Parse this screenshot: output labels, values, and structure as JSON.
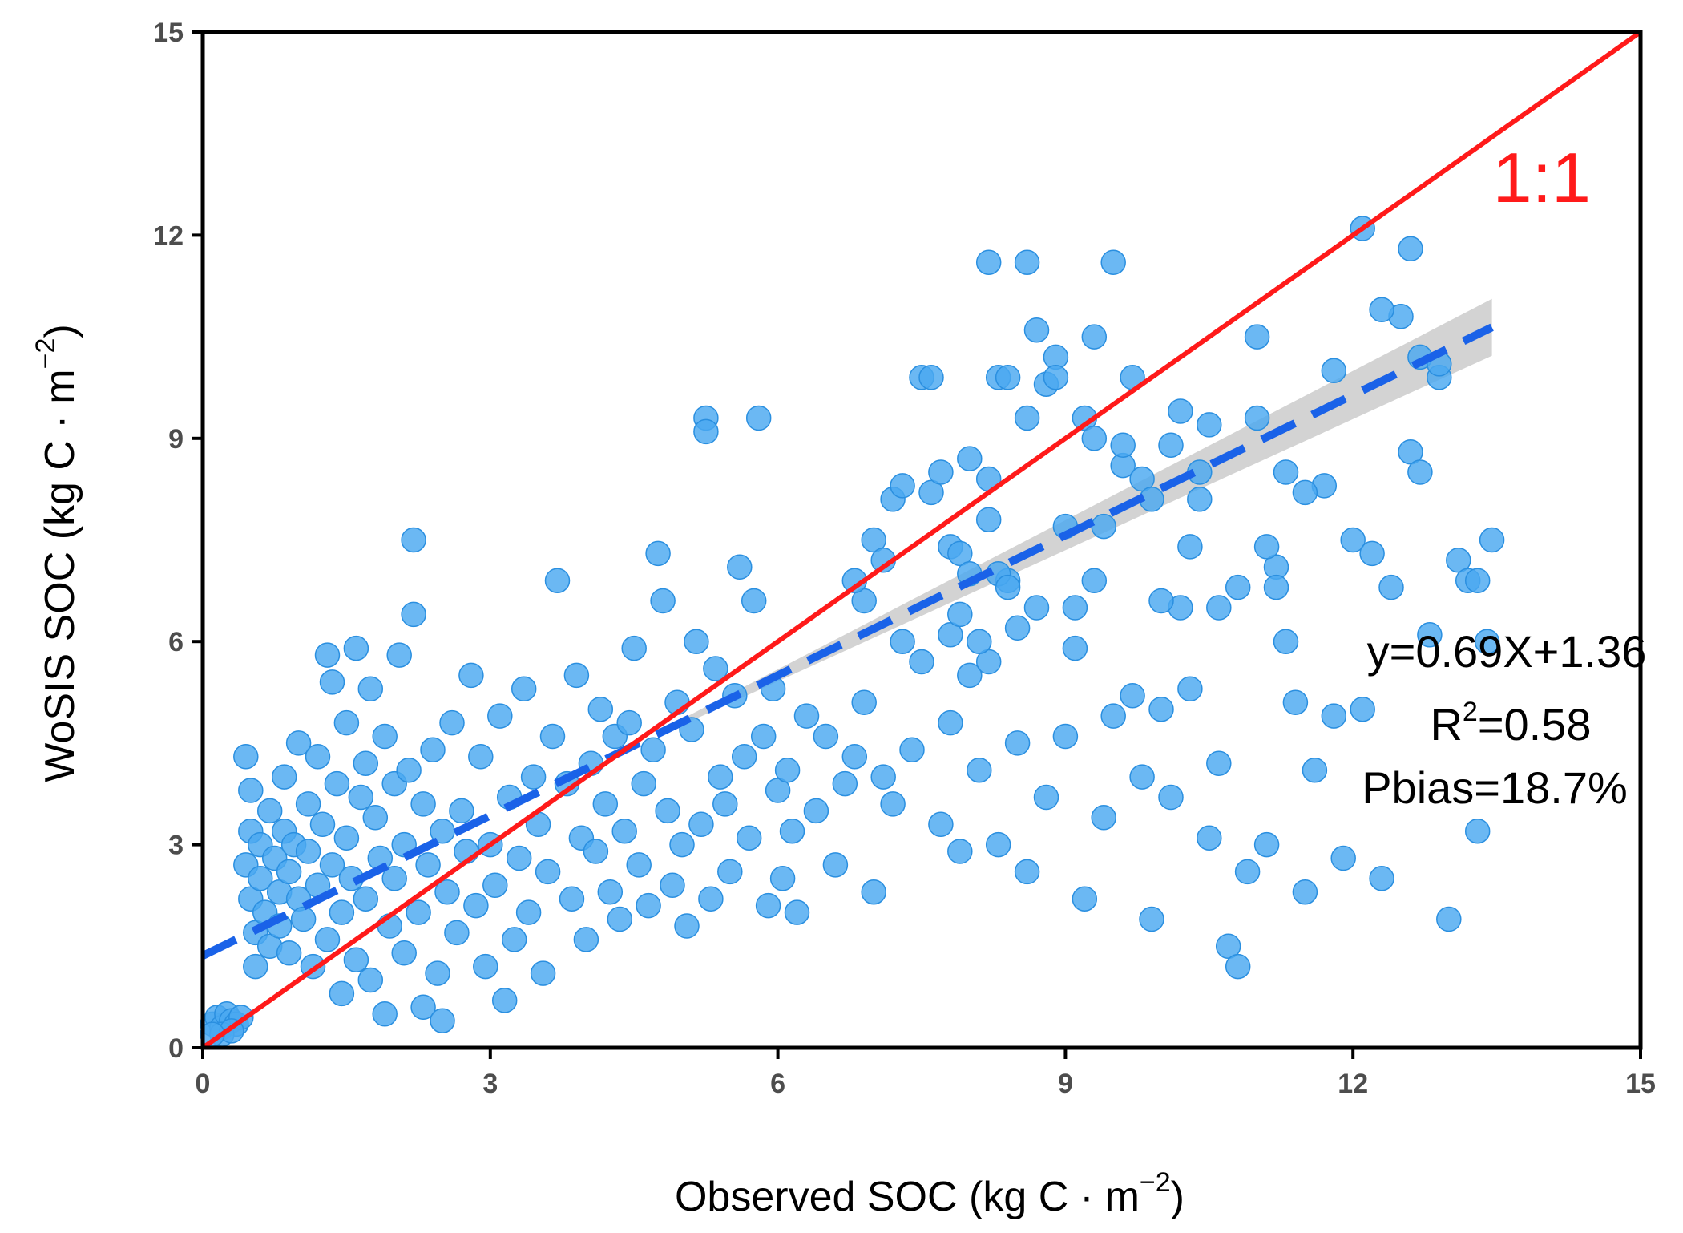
{
  "chart_data": {
    "type": "scatter",
    "title": "",
    "xlabel": {
      "prefix": "Observed SOC (kg C",
      "dot": "·",
      "unit": "m",
      "exp": "−2",
      "suffix": ")"
    },
    "ylabel": {
      "prefix": "WoSIS SOC (kg C",
      "dot": "·",
      "unit": "m",
      "exp": "−2",
      "suffix": ")"
    },
    "xlim": [
      0,
      15
    ],
    "ylim": [
      0,
      15
    ],
    "xticks": [
      "0",
      "3",
      "6",
      "9",
      "12",
      "15"
    ],
    "yticks": [
      "0",
      "3",
      "6",
      "9",
      "12",
      "15"
    ],
    "grid": false,
    "colors": {
      "points": "#4aa8f0",
      "point_edge": "#2a8fe0",
      "fit_line": "#1a62e8",
      "ci_band": "#d3d3d3",
      "one_to_one": "#ff1a1a",
      "frame": "#000000"
    },
    "one_to_one": {
      "label": "1:1",
      "x": [
        0,
        15
      ],
      "y": [
        0,
        15
      ]
    },
    "fit": {
      "slope": 0.69,
      "intercept": 1.36,
      "x_range": [
        0,
        13.45
      ],
      "ci_start_x": 4.9,
      "ci_halfwidth_start": 0.04,
      "ci_halfwidth_end": 0.42
    },
    "annotations": {
      "equation": "y=0.69X+1.36",
      "r2_prefix": "R",
      "r2_exp": "2",
      "r2_suffix": "=0.58",
      "pbias": "Pbias=18.7%"
    },
    "points": [
      [
        0.1,
        0.35
      ],
      [
        0.15,
        0.45
      ],
      [
        0.2,
        0.3
      ],
      [
        0.25,
        0.5
      ],
      [
        0.3,
        0.4
      ],
      [
        0.35,
        0.35
      ],
      [
        0.4,
        0.45
      ],
      [
        0.2,
        0.2
      ],
      [
        0.3,
        0.25
      ],
      [
        0.1,
        0.2
      ],
      [
        0.45,
        4.3
      ],
      [
        0.5,
        3.8
      ],
      [
        0.5,
        3.2
      ],
      [
        0.45,
        2.7
      ],
      [
        0.5,
        2.2
      ],
      [
        0.55,
        1.7
      ],
      [
        0.55,
        1.2
      ],
      [
        0.6,
        2.5
      ],
      [
        0.6,
        3.0
      ],
      [
        0.65,
        2.0
      ],
      [
        0.7,
        1.5
      ],
      [
        0.7,
        3.5
      ],
      [
        0.75,
        2.8
      ],
      [
        0.8,
        2.3
      ],
      [
        0.8,
        1.8
      ],
      [
        0.85,
        4.0
      ],
      [
        0.85,
        3.2
      ],
      [
        0.9,
        2.6
      ],
      [
        0.9,
        1.4
      ],
      [
        0.95,
        3.0
      ],
      [
        1.0,
        2.2
      ],
      [
        1.0,
        4.5
      ],
      [
        1.05,
        1.9
      ],
      [
        1.1,
        3.6
      ],
      [
        1.1,
        2.9
      ],
      [
        1.15,
        1.2
      ],
      [
        1.2,
        4.3
      ],
      [
        1.2,
        2.4
      ],
      [
        1.25,
        3.3
      ],
      [
        1.3,
        1.6
      ],
      [
        1.3,
        5.8
      ],
      [
        1.35,
        5.4
      ],
      [
        1.35,
        2.7
      ],
      [
        1.4,
        3.9
      ],
      [
        1.45,
        2.0
      ],
      [
        1.45,
        0.8
      ],
      [
        1.5,
        4.8
      ],
      [
        1.5,
        3.1
      ],
      [
        1.55,
        2.5
      ],
      [
        1.6,
        5.9
      ],
      [
        1.6,
        1.3
      ],
      [
        1.65,
        3.7
      ],
      [
        1.7,
        4.2
      ],
      [
        1.7,
        2.2
      ],
      [
        1.75,
        5.3
      ],
      [
        1.75,
        1.0
      ],
      [
        1.8,
        3.4
      ],
      [
        1.85,
        2.8
      ],
      [
        1.9,
        4.6
      ],
      [
        1.9,
        0.5
      ],
      [
        1.95,
        1.8
      ],
      [
        2.0,
        3.9
      ],
      [
        2.0,
        2.5
      ],
      [
        2.05,
        5.8
      ],
      [
        2.1,
        3.0
      ],
      [
        2.1,
        1.4
      ],
      [
        2.15,
        4.1
      ],
      [
        2.2,
        7.5
      ],
      [
        2.2,
        6.4
      ],
      [
        2.25,
        2.0
      ],
      [
        2.3,
        3.6
      ],
      [
        2.3,
        0.6
      ],
      [
        2.35,
        2.7
      ],
      [
        2.4,
        4.4
      ],
      [
        2.45,
        1.1
      ],
      [
        2.5,
        3.2
      ],
      [
        2.5,
        0.4
      ],
      [
        2.55,
        2.3
      ],
      [
        2.6,
        4.8
      ],
      [
        2.65,
        1.7
      ],
      [
        2.7,
        3.5
      ],
      [
        2.75,
        2.9
      ],
      [
        2.8,
        5.5
      ],
      [
        2.85,
        2.1
      ],
      [
        2.9,
        4.3
      ],
      [
        2.95,
        1.2
      ],
      [
        3.0,
        3.0
      ],
      [
        3.05,
        2.4
      ],
      [
        3.1,
        4.9
      ],
      [
        3.15,
        0.7
      ],
      [
        3.2,
        3.7
      ],
      [
        3.25,
        1.6
      ],
      [
        3.3,
        2.8
      ],
      [
        3.35,
        5.3
      ],
      [
        3.4,
        2.0
      ],
      [
        3.45,
        4.0
      ],
      [
        3.5,
        3.3
      ],
      [
        3.55,
        1.1
      ],
      [
        3.6,
        2.6
      ],
      [
        3.65,
        4.6
      ],
      [
        3.7,
        6.9
      ],
      [
        3.8,
        3.9
      ],
      [
        3.85,
        2.2
      ],
      [
        3.9,
        5.5
      ],
      [
        3.95,
        3.1
      ],
      [
        4.0,
        1.6
      ],
      [
        4.05,
        4.2
      ],
      [
        4.1,
        2.9
      ],
      [
        4.15,
        5.0
      ],
      [
        4.2,
        3.6
      ],
      [
        4.25,
        2.3
      ],
      [
        4.3,
        4.6
      ],
      [
        4.35,
        1.9
      ],
      [
        4.4,
        3.2
      ],
      [
        4.45,
        4.8
      ],
      [
        4.5,
        5.9
      ],
      [
        4.55,
        2.7
      ],
      [
        4.6,
        3.9
      ],
      [
        4.65,
        2.1
      ],
      [
        4.7,
        4.4
      ],
      [
        4.75,
        7.3
      ],
      [
        4.8,
        6.6
      ],
      [
        4.85,
        3.5
      ],
      [
        4.9,
        2.4
      ],
      [
        4.95,
        5.1
      ],
      [
        5.0,
        3.0
      ],
      [
        5.05,
        1.8
      ],
      [
        5.1,
        4.7
      ],
      [
        5.15,
        6.0
      ],
      [
        5.2,
        3.3
      ],
      [
        5.25,
        9.3
      ],
      [
        5.25,
        9.1
      ],
      [
        5.3,
        2.2
      ],
      [
        5.35,
        5.6
      ],
      [
        5.4,
        4.0
      ],
      [
        5.45,
        3.6
      ],
      [
        5.5,
        2.6
      ],
      [
        5.55,
        5.2
      ],
      [
        5.6,
        7.1
      ],
      [
        5.65,
        4.3
      ],
      [
        5.7,
        3.1
      ],
      [
        5.75,
        6.6
      ],
      [
        5.8,
        9.3
      ],
      [
        5.85,
        4.6
      ],
      [
        5.9,
        2.1
      ],
      [
        5.95,
        5.3
      ],
      [
        6.0,
        3.8
      ],
      [
        6.05,
        2.5
      ],
      [
        6.1,
        4.1
      ],
      [
        6.15,
        3.2
      ],
      [
        6.2,
        2.0
      ],
      [
        6.3,
        4.9
      ],
      [
        6.4,
        3.5
      ],
      [
        6.5,
        4.6
      ],
      [
        6.6,
        2.7
      ],
      [
        6.7,
        3.9
      ],
      [
        6.8,
        4.3
      ],
      [
        6.9,
        5.1
      ],
      [
        7.0,
        2.3
      ],
      [
        7.1,
        4.0
      ],
      [
        7.2,
        3.6
      ],
      [
        7.3,
        6.0
      ],
      [
        7.4,
        4.4
      ],
      [
        7.5,
        5.7
      ],
      [
        7.6,
        8.2
      ],
      [
        7.7,
        3.3
      ],
      [
        7.8,
        4.8
      ],
      [
        7.9,
        2.9
      ],
      [
        8.0,
        5.5
      ],
      [
        8.1,
        4.1
      ],
      [
        8.2,
        8.4
      ],
      [
        8.2,
        5.7
      ],
      [
        8.3,
        3.0
      ],
      [
        8.4,
        6.9
      ],
      [
        8.5,
        4.5
      ],
      [
        8.6,
        2.6
      ],
      [
        8.7,
        6.5
      ],
      [
        8.8,
        3.7
      ],
      [
        8.9,
        10.2
      ],
      [
        9.0,
        4.6
      ],
      [
        9.1,
        5.9
      ],
      [
        9.2,
        2.2
      ],
      [
        9.3,
        6.9
      ],
      [
        9.4,
        3.4
      ],
      [
        9.5,
        4.9
      ],
      [
        9.6,
        8.6
      ],
      [
        9.7,
        5.2
      ],
      [
        9.8,
        4.0
      ],
      [
        9.9,
        1.9
      ],
      [
        10.0,
        5.0
      ],
      [
        10.1,
        3.7
      ],
      [
        10.2,
        6.5
      ],
      [
        10.3,
        5.3
      ],
      [
        10.4,
        8.1
      ],
      [
        10.5,
        3.1
      ],
      [
        10.6,
        4.2
      ],
      [
        10.7,
        1.5
      ],
      [
        10.8,
        1.2
      ],
      [
        10.9,
        2.6
      ],
      [
        11.0,
        10.5
      ],
      [
        11.1,
        3.0
      ],
      [
        11.2,
        7.1
      ],
      [
        11.3,
        8.5
      ],
      [
        11.4,
        5.1
      ],
      [
        11.5,
        2.3
      ],
      [
        11.6,
        4.1
      ],
      [
        11.7,
        8.3
      ],
      [
        11.8,
        4.9
      ],
      [
        11.9,
        2.8
      ],
      [
        12.0,
        7.5
      ],
      [
        12.1,
        5.0
      ],
      [
        12.2,
        7.3
      ],
      [
        12.3,
        2.5
      ],
      [
        12.4,
        6.8
      ],
      [
        12.5,
        10.8
      ],
      [
        12.6,
        8.8
      ],
      [
        12.7,
        8.5
      ],
      [
        12.8,
        6.1
      ],
      [
        12.9,
        9.9
      ],
      [
        13.0,
        1.9
      ],
      [
        13.1,
        7.2
      ],
      [
        13.2,
        6.9
      ],
      [
        13.3,
        3.2
      ],
      [
        13.4,
        6.0
      ],
      [
        7.0,
        7.5
      ],
      [
        7.1,
        7.2
      ],
      [
        7.2,
        8.1
      ],
      [
        7.5,
        9.9
      ],
      [
        7.6,
        9.9
      ],
      [
        7.8,
        6.1
      ],
      [
        7.9,
        6.4
      ],
      [
        8.1,
        6.0
      ],
      [
        8.3,
        7.0
      ],
      [
        8.5,
        6.2
      ],
      [
        8.6,
        11.6
      ],
      [
        8.7,
        10.6
      ],
      [
        8.8,
        9.8
      ],
      [
        8.9,
        9.9
      ],
      [
        9.0,
        7.7
      ],
      [
        9.1,
        6.5
      ],
      [
        9.2,
        9.3
      ],
      [
        9.3,
        9.0
      ],
      [
        9.4,
        7.7
      ],
      [
        9.5,
        11.6
      ],
      [
        9.6,
        8.9
      ],
      [
        9.7,
        9.9
      ],
      [
        9.8,
        8.4
      ],
      [
        9.9,
        8.1
      ],
      [
        10.0,
        6.6
      ],
      [
        10.1,
        8.9
      ],
      [
        10.2,
        9.4
      ],
      [
        10.3,
        7.4
      ],
      [
        10.4,
        8.5
      ],
      [
        10.5,
        9.2
      ],
      [
        10.6,
        6.5
      ],
      [
        10.8,
        6.8
      ],
      [
        11.0,
        9.3
      ],
      [
        11.1,
        7.4
      ],
      [
        11.2,
        6.8
      ],
      [
        11.3,
        6.0
      ],
      [
        11.5,
        8.2
      ],
      [
        11.8,
        10.0
      ],
      [
        12.1,
        12.1
      ],
      [
        12.3,
        10.9
      ],
      [
        12.6,
        11.8
      ],
      [
        12.7,
        10.2
      ],
      [
        12.9,
        10.1
      ],
      [
        13.3,
        6.9
      ],
      [
        13.45,
        7.5
      ],
      [
        8.2,
        11.6
      ],
      [
        8.3,
        9.9
      ],
      [
        9.3,
        10.5
      ],
      [
        8.4,
        6.8
      ],
      [
        8.2,
        7.8
      ],
      [
        7.8,
        7.4
      ],
      [
        7.9,
        7.3
      ],
      [
        8.0,
        7.0
      ],
      [
        8.4,
        9.9
      ],
      [
        8.6,
        9.3
      ],
      [
        8.0,
        8.7
      ],
      [
        7.7,
        8.5
      ],
      [
        7.3,
        8.3
      ],
      [
        6.9,
        6.6
      ],
      [
        6.8,
        6.9
      ]
    ]
  }
}
